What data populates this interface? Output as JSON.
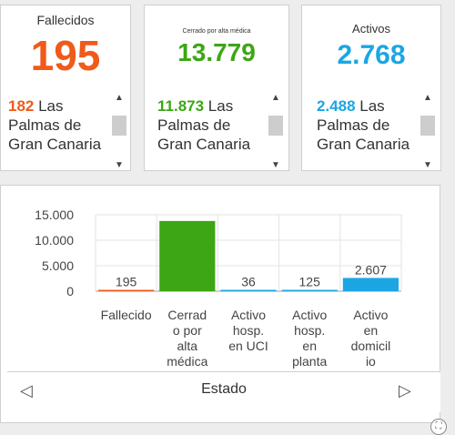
{
  "cards": [
    {
      "title": "Fallecidos",
      "value": "195",
      "color": "#f05a1a",
      "list_num": "182",
      "list_text": " Las Palmas de Gran Canaria"
    },
    {
      "title": "Cerrado por alta médica",
      "value": "13.779",
      "color": "#3ca614",
      "list_num": "11.873",
      "list_text": " Las Palmas de Gran Canaria"
    },
    {
      "title": "Activos",
      "value": "2.768",
      "color": "#1ba6e3",
      "list_num": "2.488",
      "list_text": " Las Palmas de Gran Canaria"
    }
  ],
  "scroll_icons": {
    "up": "chevron-up-icon",
    "down": "chevron-down-icon"
  },
  "chart_data": {
    "type": "bar",
    "categories": [
      "Fallecido",
      "Cerrado por alta médica",
      "Activo hosp. en UCI",
      "Activo hosp. en planta",
      "Activo en domicilio"
    ],
    "category_lines": [
      [
        "Fallecido"
      ],
      [
        "Cerrad",
        "o por",
        "alta",
        "médica"
      ],
      [
        "Activo",
        "hosp.",
        "en UCI"
      ],
      [
        "Activo",
        "hosp.",
        "en",
        "planta"
      ],
      [
        "Activo",
        "en",
        "domicil",
        "io"
      ]
    ],
    "values": [
      195,
      13779,
      36,
      125,
      2607
    ],
    "value_labels": [
      "195",
      "",
      "36",
      "125",
      "2.607"
    ],
    "colors": [
      "#f05a1a",
      "#3ca614",
      "#1ba6e3",
      "#1ba6e3",
      "#1ba6e3"
    ],
    "yticks": [
      "15.000",
      "10.000",
      "5.000",
      "0"
    ],
    "ytick_values": [
      15000,
      10000,
      5000,
      0
    ],
    "ylim": [
      0,
      15000
    ],
    "xlabel": "Estado",
    "grid": true
  },
  "nav": {
    "prev": "◁",
    "next": "▷"
  }
}
